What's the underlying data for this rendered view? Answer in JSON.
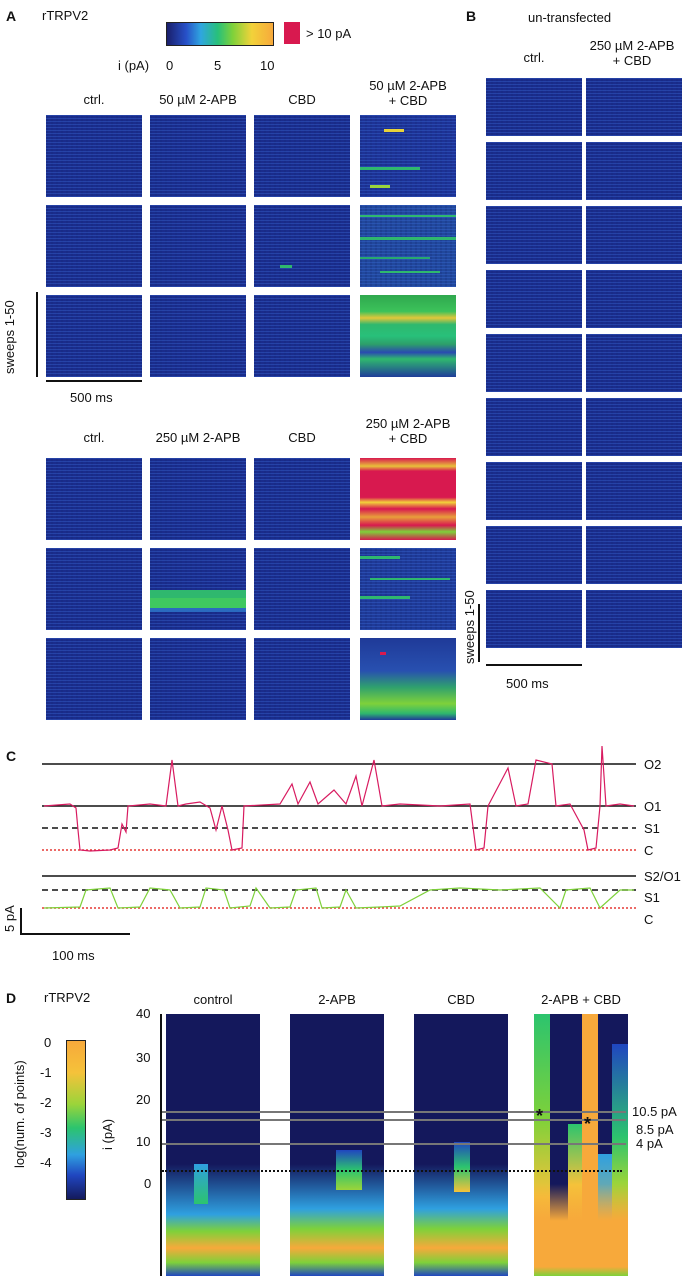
{
  "panel_a": {
    "letter": "A",
    "title": "rTRPV2",
    "colorbar_label": "i (pA)",
    "colorbar_ticks": [
      "0",
      "5",
      "10"
    ],
    "overflow_label": "> 10 pA",
    "row1_headers": [
      "ctrl.",
      "50 µM 2-APB",
      "CBD",
      "50 µM 2-APB\n+ CBD"
    ],
    "row2_headers": [
      "ctrl.",
      "250 µM 2-APB",
      "CBD",
      "250 µM 2-APB\n+ CBD"
    ],
    "sweeps_label": "sweeps 1-50",
    "scale_label": "500 ms"
  },
  "panel_b": {
    "letter": "B",
    "title": "un-transfected",
    "headers": [
      "ctrl.",
      "250 µM 2-APB\n+ CBD"
    ],
    "sweeps_label": "sweeps 1-50",
    "scale_label": "500 ms"
  },
  "panel_c": {
    "letter": "C",
    "trace1_levels": [
      "O2",
      "O1",
      "S1",
      "C"
    ],
    "trace2_levels": [
      "S2/O1",
      "S1",
      "C"
    ],
    "scale_y": "5 pA",
    "scale_x": "100 ms"
  },
  "panel_d": {
    "letter": "D",
    "title": "rTRPV2",
    "colorbar_label": "log(num. of points)",
    "colorbar_ticks": [
      "0",
      "-1",
      "-2",
      "-3",
      "-4"
    ],
    "conditions": [
      "control",
      "2-APB",
      "CBD",
      "2-APB + CBD"
    ],
    "y_axis_label": "i (pA)",
    "y_ticks": [
      "40",
      "30",
      "20",
      "10",
      "0"
    ],
    "level_labels": [
      "10.5 pA",
      "8.5 pA",
      "4 pA"
    ]
  },
  "colors": {
    "background_dark": "#14185c",
    "overflow": "#d8194f",
    "trace_high": "#d81b60",
    "trace_mid": "#7ed13a",
    "trace_low": "#3a2b8c",
    "closed_line": "#e53935"
  }
}
